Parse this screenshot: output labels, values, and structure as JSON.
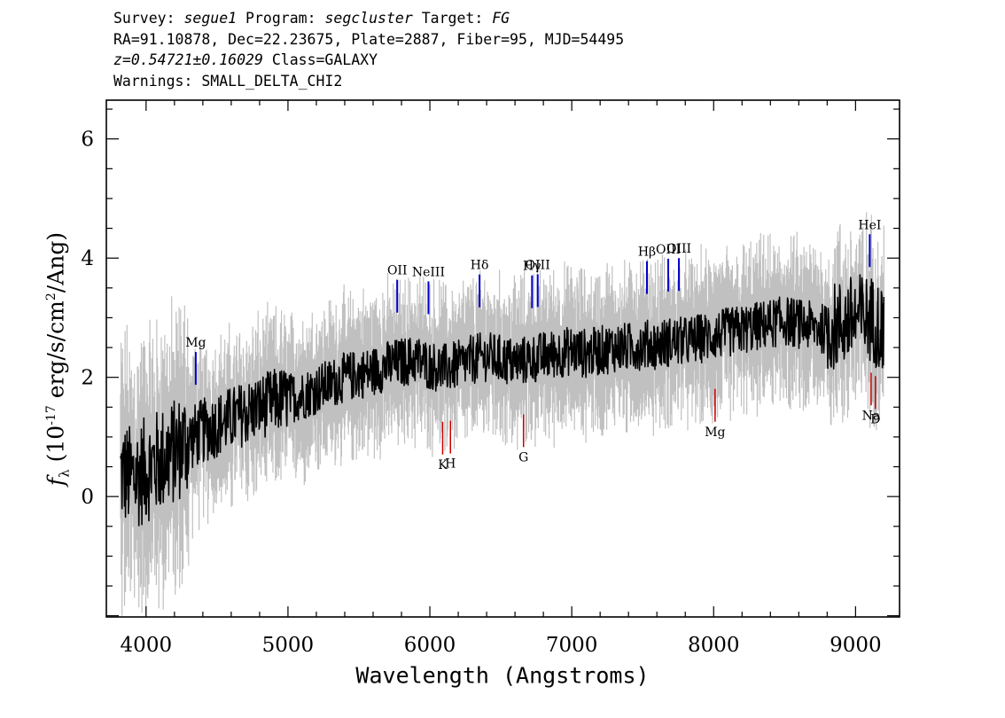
{
  "header": {
    "survey_label": "Survey:",
    "survey": "segue1",
    "program_label": "Program:",
    "program": "segcluster",
    "target_label": "Target:",
    "target": "FG",
    "coords": "RA=91.10878, Dec=22.23675, Plate=2887, Fiber=95, MJD=54495",
    "redshift": "z=0.54721±0.16029",
    "class": "Class=GALAXY",
    "warnings": "Warnings: SMALL_DELTA_CHI2"
  },
  "chart_data": {
    "type": "line",
    "xlabel": "Wavelength (Angstroms)",
    "ylabel_text": "(10",
    "ylabel_exp": "-17",
    "ylabel_units": " erg/s/cm",
    "ylabel_units_exp": "2",
    "ylabel_units_end": "/Ang)",
    "xlim": [
      3720,
      9310
    ],
    "ylim": [
      -2.02,
      6.65
    ],
    "xticks": [
      4000,
      5000,
      6000,
      7000,
      8000,
      9000
    ],
    "yticks": [
      0,
      2,
      4,
      6
    ],
    "colors": {
      "flux": "#000000",
      "error": "#c0c0c0",
      "emission": "#0000cc",
      "absorption": "#cc0000"
    },
    "series": [
      {
        "style": "black",
        "x": [
          3820,
          3900,
          4000,
          4100,
          4200,
          4300,
          4400,
          4500,
          4600,
          4700,
          4800,
          4900,
          5000,
          5100,
          5200,
          5300,
          5400,
          5500,
          5600,
          5700,
          5800,
          5900,
          6000,
          6100,
          6200,
          6300,
          6400,
          6500,
          6600,
          6700,
          6800,
          6900,
          7000,
          7100,
          7200,
          7300,
          7400,
          7500,
          7600,
          7700,
          7800,
          7900,
          8000,
          8100,
          8200,
          8300,
          8400,
          8500,
          8600,
          8700,
          8800,
          8900,
          9000,
          9100,
          9200
        ],
        "values": [
          0.4,
          0.3,
          0.45,
          0.6,
          0.75,
          0.95,
          1.1,
          1.2,
          1.3,
          1.4,
          1.5,
          1.6,
          1.65,
          1.7,
          1.8,
          1.9,
          2.0,
          2.05,
          2.1,
          2.2,
          2.25,
          2.3,
          2.2,
          2.15,
          2.2,
          2.3,
          2.35,
          2.3,
          2.25,
          2.3,
          2.35,
          2.4,
          2.45,
          2.4,
          2.45,
          2.5,
          2.5,
          2.55,
          2.55,
          2.6,
          2.6,
          2.65,
          2.7,
          2.75,
          2.8,
          2.85,
          2.9,
          2.95,
          2.9,
          2.85,
          2.8,
          2.9,
          3.0,
          3.0,
          2.8
        ]
      }
    ],
    "emission_lines": [
      {
        "label": "Mg",
        "x": 4350
      },
      {
        "label": "OII",
        "x": 5770
      },
      {
        "label": "NeIII",
        "x": 5990
      },
      {
        "label": "Hδ",
        "x": 6350
      },
      {
        "label": "Hγ",
        "x": 6720
      },
      {
        "label": "OIII",
        "x": 6760
      },
      {
        "label": "Hβ",
        "x": 7530
      },
      {
        "label": "OIII",
        "x": 7680
      },
      {
        "label": "OIII",
        "x": 7755
      },
      {
        "label": "HeI",
        "x": 9100
      }
    ],
    "absorption_lines": [
      {
        "label": "K",
        "x": 6090
      },
      {
        "label": "H",
        "x": 6145
      },
      {
        "label": "G",
        "x": 6660
      },
      {
        "label": "Mg",
        "x": 8010
      },
      {
        "label": "Na",
        "x": 9110
      },
      {
        "label": "D",
        "x": 9140
      }
    ]
  }
}
